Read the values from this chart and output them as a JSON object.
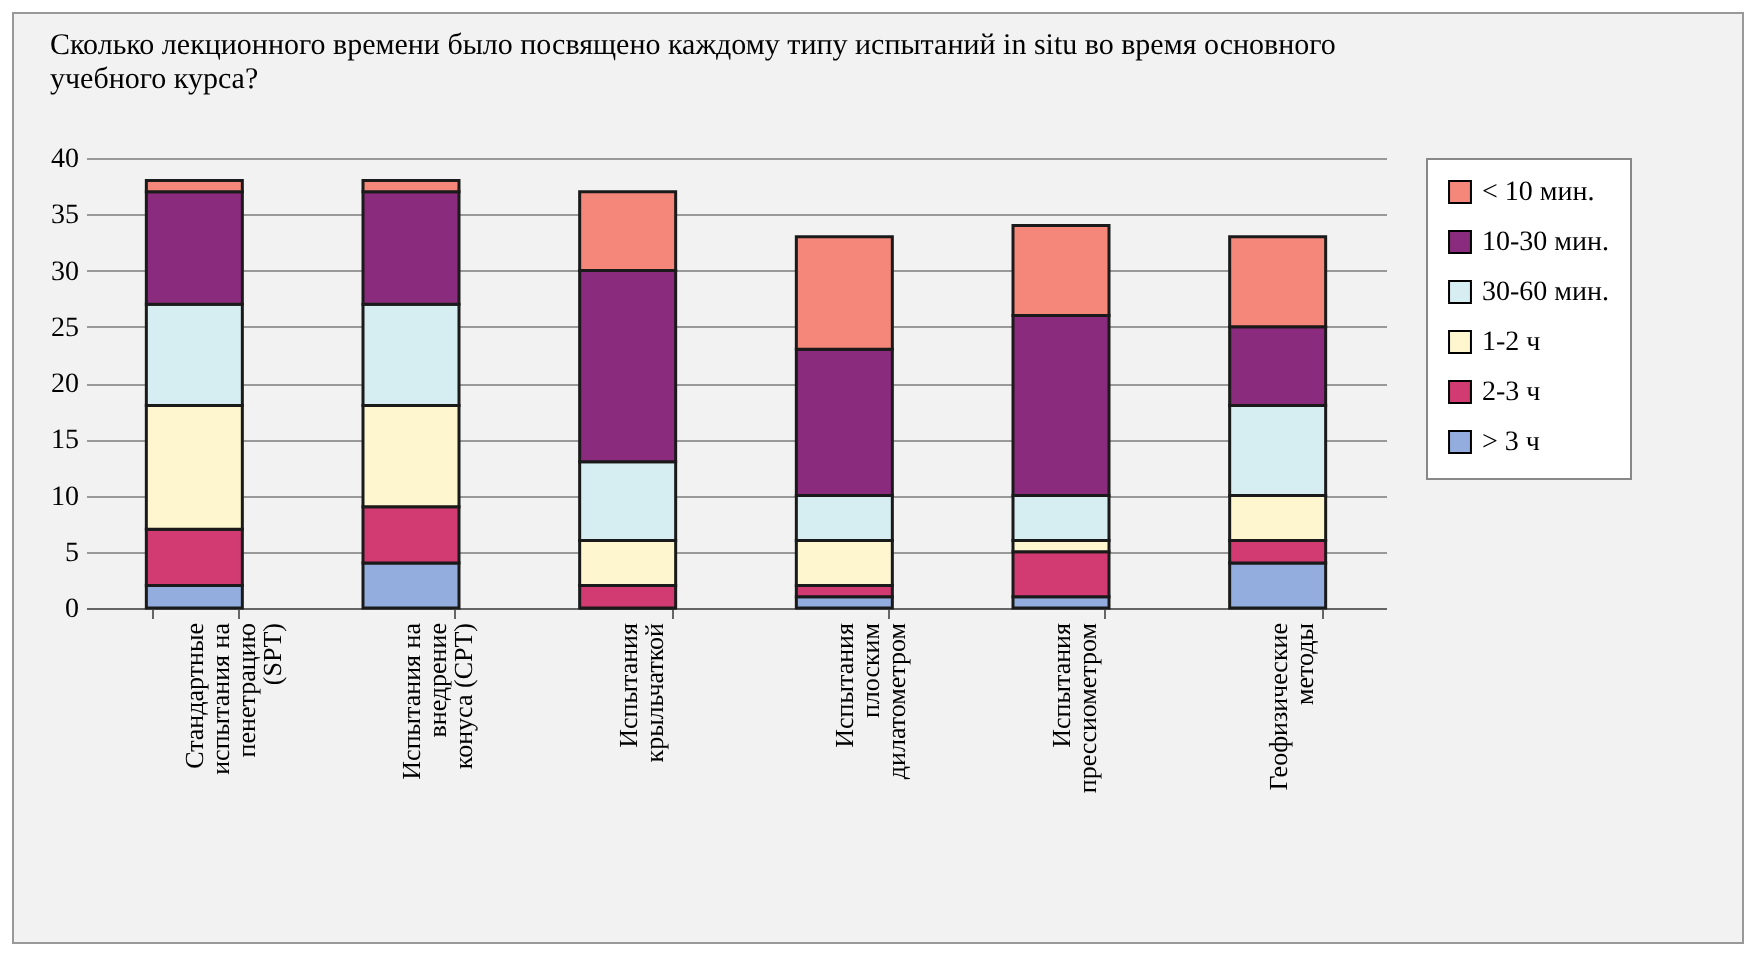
{
  "chart_data": {
    "type": "bar",
    "title": "Сколько лекционного времени было посвящено каждому типу испытаний in situ во время основного учебного курса?",
    "categories": [
      "Стандартные испытания на пенетрацию (SPT)",
      "Испытания на внедрение конуса (CPT)",
      "Испытания крыльчаткой",
      "Испытания плоским дилатометром",
      "Испытания прессиометром",
      "Геофизические методы"
    ],
    "stacked": true,
    "series": [
      {
        "name": "> 3 ч",
        "color": "#93aede",
        "values": [
          2,
          4,
          0,
          1,
          1,
          4
        ]
      },
      {
        "name": "2-3 ч",
        "color": "#d23a72",
        "values": [
          5,
          5,
          2,
          1,
          4,
          2
        ]
      },
      {
        "name": "1-2 ч",
        "color": "#fdf6cf",
        "values": [
          11,
          9,
          4,
          4,
          1,
          4
        ]
      },
      {
        "name": "30-60 мин.",
        "color": "#d6edf1",
        "values": [
          9,
          9,
          7,
          4,
          4,
          8
        ]
      },
      {
        "name": "10-30 мин.",
        "color": "#8b2b7e",
        "values": [
          10,
          10,
          17,
          13,
          16,
          7
        ]
      },
      {
        "name": "< 10 мин.",
        "color": "#f4877a",
        "values": [
          1,
          1,
          7,
          10,
          8,
          8
        ]
      }
    ],
    "ylim": [
      0,
      40
    ],
    "yticks": [
      0,
      5,
      10,
      15,
      20,
      25,
      30,
      35,
      40
    ],
    "grid": "y",
    "legend": "right"
  }
}
